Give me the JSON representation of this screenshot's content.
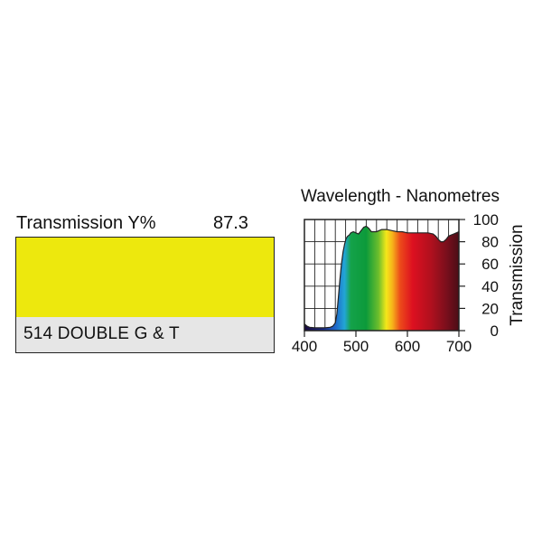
{
  "filter": {
    "transmission_label": "Transmission Y%",
    "transmission_value": "87.3",
    "swatch_color": "#ede80d",
    "name": "514 DOUBLE G & T"
  },
  "chart_data": {
    "type": "area",
    "title": "Wavelength - Nanometres",
    "xlabel": "",
    "ylabel": "Transmission",
    "xlim": [
      400,
      700
    ],
    "ylim": [
      0,
      100
    ],
    "x_ticks": [
      400,
      500,
      600,
      700
    ],
    "y_ticks": [
      0,
      20,
      40,
      60,
      80,
      100
    ],
    "grid": true,
    "x": [
      400,
      405,
      410,
      420,
      430,
      440,
      450,
      455,
      460,
      463,
      466,
      469,
      472,
      475,
      478,
      481,
      484,
      487,
      490,
      495,
      500,
      505,
      510,
      515,
      520,
      525,
      530,
      535,
      540,
      545,
      550,
      560,
      570,
      580,
      590,
      600,
      610,
      620,
      630,
      640,
      650,
      655,
      660,
      665,
      670,
      675,
      680,
      685,
      690,
      695,
      700
    ],
    "values": [
      6,
      4,
      3,
      2.5,
      2.5,
      2.5,
      3,
      4,
      7,
      15,
      30,
      46,
      60,
      71,
      78,
      83,
      85,
      86,
      88,
      89,
      88,
      87,
      90,
      93,
      94,
      92,
      89,
      89,
      89,
      90,
      91,
      91,
      90,
      89,
      89,
      88,
      88,
      88,
      88,
      88,
      87,
      85,
      82,
      80,
      80,
      82,
      85,
      86,
      87,
      88,
      89
    ]
  }
}
